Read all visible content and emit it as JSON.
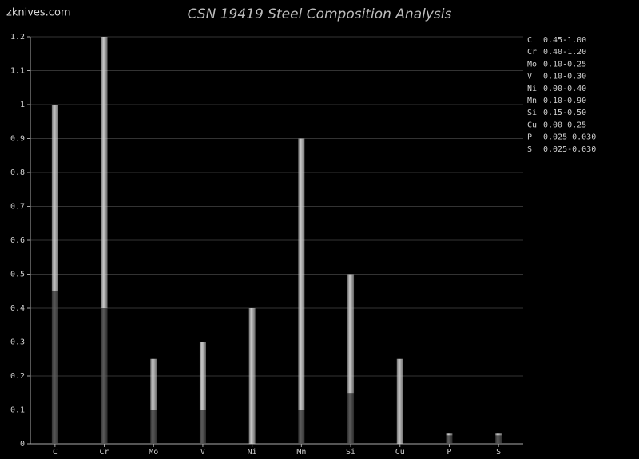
{
  "chart_data": {
    "type": "range_bar",
    "title": "CSN 19419 Steel Composition Analysis",
    "watermark": "zknives.com",
    "categories": [
      "C",
      "Cr",
      "Mo",
      "V",
      "Ni",
      "Mn",
      "Si",
      "Cu",
      "P",
      "S"
    ],
    "min": [
      0.45,
      0.4,
      0.1,
      0.1,
      0.0,
      0.1,
      0.15,
      0.0,
      0.025,
      0.025
    ],
    "max": [
      1.0,
      1.2,
      0.25,
      0.3,
      0.4,
      0.9,
      0.5,
      0.25,
      0.03,
      0.03
    ],
    "range_labels": [
      "0.45-1.00",
      "0.40-1.20",
      "0.10-0.25",
      "0.10-0.30",
      "0.00-0.40",
      "0.10-0.90",
      "0.15-0.50",
      "0.00-0.25",
      "0.025-0.030",
      "0.025-0.030"
    ],
    "ylim": [
      0,
      1.2
    ],
    "yticks": [
      0,
      0.1,
      0.2,
      0.3,
      0.4,
      0.5,
      0.6,
      0.7,
      0.8,
      0.9,
      1,
      1.1,
      1.2
    ],
    "grid": true,
    "min_color": "#5a5a5a",
    "range_color": "#c8c8c8"
  }
}
